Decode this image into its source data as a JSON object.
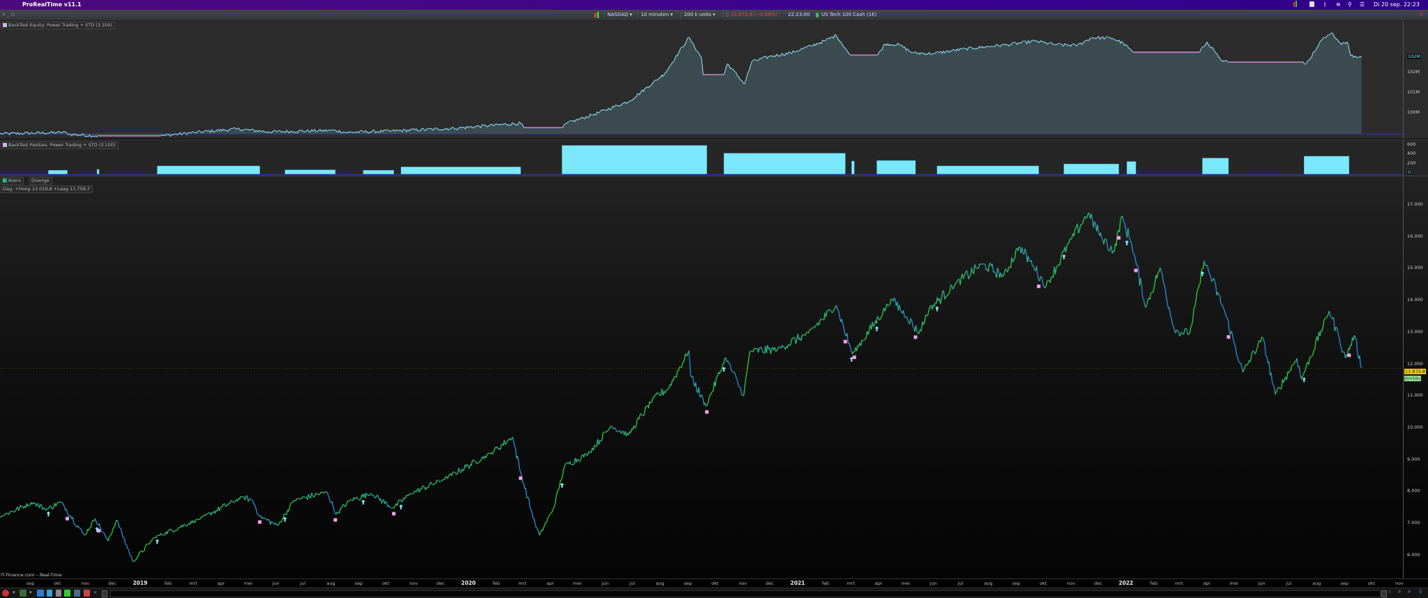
{
  "menubar": {
    "app_title": "ProRealTime v11.1",
    "datetime": "Di 20 sep. 22:23"
  },
  "toolbar": {
    "window_controls": "X _ ⊡",
    "market": "NASDAQ ▾",
    "interval": "10 minuten ▾",
    "units": "200 k units ▾",
    "last_price": "11.873,8 (−0,88%)",
    "time": "22:23:00",
    "instrument": "US Tech 100 Cash (1€)",
    "colors": {
      "down": "#e04848",
      "live_dot": "#33cc33"
    }
  },
  "equity_panel": {
    "title": "BackTest Equity: Power Trading + STD (3.100)",
    "axis_labels": [
      "102M",
      "101M",
      "100M"
    ],
    "current_label": "102M"
  },
  "positions_panel": {
    "title": "BackTest Posities: Power Trading + STD (3.100)",
    "axis_labels": [
      "600",
      "400",
      "200"
    ],
    "current_label": "0"
  },
  "price_panel": {
    "tabs": [
      "Koers",
      "Overige"
    ],
    "day_info": "Dag: +Hoog 12.019,8 +Laag 11.759,7",
    "axis_labels": [
      "17.000",
      "16.000",
      "15.000",
      "14.000",
      "13.000",
      "12.000",
      "11.000",
      "10.000",
      "9.000",
      "8.000",
      "7.000",
      "6.000"
    ],
    "price_tag": "11.873,8",
    "countdown_tag": "6m56s",
    "source": "IT-Finance.com – Real-Time"
  },
  "time_axis": [
    {
      "label": "sep",
      "date": "2018-09-01"
    },
    {
      "label": "okt",
      "date": "2018-10-01"
    },
    {
      "label": "nov",
      "date": "2018-11-01"
    },
    {
      "label": "dec",
      "date": "2018-12-01"
    },
    {
      "label": "2019",
      "date": "2019-01-01",
      "year": true
    },
    {
      "label": "feb",
      "date": "2019-02-01"
    },
    {
      "label": "mrt",
      "date": "2019-03-01"
    },
    {
      "label": "apr",
      "date": "2019-04-01"
    },
    {
      "label": "mei",
      "date": "2019-05-01"
    },
    {
      "label": "jun",
      "date": "2019-06-01"
    },
    {
      "label": "jul",
      "date": "2019-07-01"
    },
    {
      "label": "aug",
      "date": "2019-08-01"
    },
    {
      "label": "sep",
      "date": "2019-09-01"
    },
    {
      "label": "okt",
      "date": "2019-10-01"
    },
    {
      "label": "nov",
      "date": "2019-11-01"
    },
    {
      "label": "dec",
      "date": "2019-12-01"
    },
    {
      "label": "2020",
      "date": "2020-01-01",
      "year": true
    },
    {
      "label": "feb",
      "date": "2020-02-01"
    },
    {
      "label": "mrt",
      "date": "2020-03-01"
    },
    {
      "label": "apr",
      "date": "2020-04-01"
    },
    {
      "label": "mei",
      "date": "2020-05-01"
    },
    {
      "label": "jun",
      "date": "2020-06-01"
    },
    {
      "label": "jul",
      "date": "2020-07-01"
    },
    {
      "label": "aug",
      "date": "2020-08-01"
    },
    {
      "label": "sep",
      "date": "2020-09-01"
    },
    {
      "label": "okt",
      "date": "2020-10-01"
    },
    {
      "label": "nov",
      "date": "2020-11-01"
    },
    {
      "label": "dec",
      "date": "2020-12-01"
    },
    {
      "label": "2021",
      "date": "2021-01-01",
      "year": true
    },
    {
      "label": "feb",
      "date": "2021-02-01"
    },
    {
      "label": "mrt",
      "date": "2021-03-01"
    },
    {
      "label": "apr",
      "date": "2021-04-01"
    },
    {
      "label": "mei",
      "date": "2021-05-01"
    },
    {
      "label": "jun",
      "date": "2021-06-01"
    },
    {
      "label": "jul",
      "date": "2021-07-01"
    },
    {
      "label": "aug",
      "date": "2021-08-01"
    },
    {
      "label": "sep",
      "date": "2021-09-01"
    },
    {
      "label": "okt",
      "date": "2021-10-01"
    },
    {
      "label": "nov",
      "date": "2021-11-01"
    },
    {
      "label": "dec",
      "date": "2021-12-01"
    },
    {
      "label": "2022",
      "date": "2022-01-01",
      "year": true
    },
    {
      "label": "feb",
      "date": "2022-02-01"
    },
    {
      "label": "mrt",
      "date": "2022-03-01"
    },
    {
      "label": "apr",
      "date": "2022-04-01"
    },
    {
      "label": "mei",
      "date": "2022-05-01"
    },
    {
      "label": "jun",
      "date": "2022-06-01"
    },
    {
      "label": "jul",
      "date": "2022-07-01"
    },
    {
      "label": "aug",
      "date": "2022-08-01"
    },
    {
      "label": "sep",
      "date": "2022-09-01"
    },
    {
      "label": "okt",
      "date": "2022-10-01"
    },
    {
      "label": "nov",
      "date": "2022-11-01"
    }
  ],
  "chart_data": [
    {
      "type": "area",
      "title": "BackTest Equity: Power Trading + STD (3.100)",
      "unit": "M",
      "colors": {
        "line": "#8ad8f2",
        "flat": "#e08ad8",
        "fill": "#3b4b50"
      },
      "points": [
        [
          "2018-07-29",
          98.93
        ],
        [
          "2018-10-11",
          99.0
        ],
        [
          "2018-10-14",
          98.9
        ],
        [
          "2018-11-15",
          98.83
        ],
        [
          "2019-01-24",
          98.83
        ],
        [
          "2019-03-03",
          99.0
        ],
        [
          "2019-04-19",
          99.17
        ],
        [
          "2019-05-24",
          99.03
        ],
        [
          "2019-08-06",
          99.1
        ],
        [
          "2019-08-18",
          99.0
        ],
        [
          "2019-10-07",
          99.07
        ],
        [
          "2019-12-16",
          99.2
        ],
        [
          "2020-01-24",
          99.34
        ],
        [
          "2020-02-28",
          99.45
        ],
        [
          "2020-03-03",
          99.24
        ],
        [
          "2020-04-15",
          99.24
        ],
        [
          "2020-04-19",
          99.45
        ],
        [
          "2020-05-20",
          99.9
        ],
        [
          "2020-06-28",
          100.55
        ],
        [
          "2020-08-06",
          101.9
        ],
        [
          "2020-09-02",
          103.7
        ],
        [
          "2020-09-16",
          102.7
        ],
        [
          "2020-09-18",
          101.86
        ],
        [
          "2020-10-11",
          101.86
        ],
        [
          "2020-10-15",
          102.4
        ],
        [
          "2020-11-03",
          101.4
        ],
        [
          "2020-11-11",
          102.5
        ],
        [
          "2020-12-01",
          102.76
        ],
        [
          "2020-12-24",
          102.93
        ],
        [
          "2021-01-16",
          103.28
        ],
        [
          "2021-02-01",
          103.55
        ],
        [
          "2021-02-13",
          103.8
        ],
        [
          "2021-02-24",
          103.1
        ],
        [
          "2021-02-28",
          102.83
        ],
        [
          "2021-03-31",
          102.83
        ],
        [
          "2021-04-08",
          103.38
        ],
        [
          "2021-04-24",
          103.34
        ],
        [
          "2021-05-09",
          102.93
        ],
        [
          "2021-06-01",
          102.9
        ],
        [
          "2021-07-07",
          103.14
        ],
        [
          "2021-08-22",
          103.34
        ],
        [
          "2021-09-22",
          103.52
        ],
        [
          "2021-10-16",
          103.34
        ],
        [
          "2021-11-08",
          103.31
        ],
        [
          "2021-11-24",
          103.69
        ],
        [
          "2021-12-17",
          103.66
        ],
        [
          "2021-12-29",
          103.41
        ],
        [
          "2022-01-09",
          102.97
        ],
        [
          "2022-03-24",
          102.97
        ],
        [
          "2022-04-01",
          103.48
        ],
        [
          "2022-04-09",
          103.07
        ],
        [
          "2022-04-17",
          102.55
        ],
        [
          "2022-04-24",
          102.48
        ],
        [
          "2022-07-17",
          102.48
        ],
        [
          "2022-07-20",
          102.38
        ],
        [
          "2022-07-31",
          103.07
        ],
        [
          "2022-08-07",
          103.59
        ],
        [
          "2022-08-19",
          103.9
        ],
        [
          "2022-08-27",
          103.41
        ],
        [
          "2022-09-04",
          103.48
        ],
        [
          "2022-09-08",
          102.79
        ],
        [
          "2022-09-20",
          102.72
        ]
      ]
    },
    {
      "type": "bar",
      "title": "BackTest Posities: Power Trading + STD (3.100)",
      "ylim": [
        0,
        600
      ],
      "color": "#7ae8ff",
      "positions": [
        {
          "start": "2018-09-21",
          "end": "2018-10-12",
          "size": 80
        },
        {
          "start": "2018-11-14",
          "end": "2018-11-16",
          "size": 100
        },
        {
          "start": "2019-01-20",
          "end": "2019-05-14",
          "size": 170
        },
        {
          "start": "2019-06-11",
          "end": "2019-08-06",
          "size": 90
        },
        {
          "start": "2019-09-06",
          "end": "2019-10-10",
          "size": 80
        },
        {
          "start": "2019-10-18",
          "end": "2020-02-28",
          "size": 150
        },
        {
          "start": "2020-04-14",
          "end": "2020-09-22",
          "size": 590
        },
        {
          "start": "2020-10-11",
          "end": "2021-02-23",
          "size": 430
        },
        {
          "start": "2021-03-02",
          "end": "2021-03-05",
          "size": 270
        },
        {
          "start": "2021-03-30",
          "end": "2021-05-12",
          "size": 280
        },
        {
          "start": "2021-06-05",
          "end": "2021-09-26",
          "size": 170
        },
        {
          "start": "2021-10-24",
          "end": "2021-12-24",
          "size": 210
        },
        {
          "start": "2022-01-02",
          "end": "2022-01-12",
          "size": 260
        },
        {
          "start": "2022-03-27",
          "end": "2022-04-25",
          "size": 330
        },
        {
          "start": "2022-07-18",
          "end": "2022-09-06",
          "size": 370
        }
      ]
    },
    {
      "type": "line",
      "title": "Koers",
      "ylim": [
        6000,
        17000
      ],
      "colors": {
        "up": "#2fd02f",
        "down": "#2a8fe0",
        "buy_marker": "#8ff0ff",
        "sell_marker": "#f5a0f0"
      },
      "points": [
        [
          "2018-07-29",
          7219
        ],
        [
          "2018-09-04",
          7656
        ],
        [
          "2018-09-19",
          7438
        ],
        [
          "2018-10-05",
          7678
        ],
        [
          "2018-10-31",
          6628
        ],
        [
          "2018-11-12",
          7153
        ],
        [
          "2018-11-26",
          6453
        ],
        [
          "2018-12-06",
          7109
        ],
        [
          "2018-12-24",
          5797
        ],
        [
          "2019-01-17",
          6562
        ],
        [
          "2019-03-09",
          7153
        ],
        [
          "2019-04-25",
          7832
        ],
        [
          "2019-05-06",
          7722
        ],
        [
          "2019-05-14",
          7219
        ],
        [
          "2019-06-03",
          6934
        ],
        [
          "2019-06-21",
          7722
        ],
        [
          "2019-07-28",
          7985
        ],
        [
          "2019-08-07",
          7285
        ],
        [
          "2019-08-22",
          7722
        ],
        [
          "2019-09-15",
          7941
        ],
        [
          "2019-10-09",
          7481
        ],
        [
          "2019-10-29",
          7941
        ],
        [
          "2019-12-04",
          8379
        ],
        [
          "2020-01-25",
          9188
        ],
        [
          "2020-02-19",
          9713
        ],
        [
          "2020-02-28",
          8597
        ],
        [
          "2020-03-15",
          7000
        ],
        [
          "2020-03-20",
          6628
        ],
        [
          "2020-04-05",
          7503
        ],
        [
          "2020-04-17",
          8816
        ],
        [
          "2020-05-13",
          9188
        ],
        [
          "2020-06-08",
          10063
        ],
        [
          "2020-06-27",
          9779
        ],
        [
          "2020-07-25",
          10940
        ],
        [
          "2020-08-10",
          11223
        ],
        [
          "2020-09-02",
          12427
        ],
        [
          "2020-09-04",
          11661
        ],
        [
          "2020-09-21",
          10676
        ],
        [
          "2020-10-13",
          12208
        ],
        [
          "2020-11-02",
          11004
        ],
        [
          "2020-11-09",
          12405
        ],
        [
          "2020-12-10",
          12470
        ],
        [
          "2021-01-13",
          12974
        ],
        [
          "2021-02-13",
          13849
        ],
        [
          "2021-03-03",
          12317
        ],
        [
          "2021-04-16",
          14046
        ],
        [
          "2021-05-02",
          13499
        ],
        [
          "2021-05-16",
          12974
        ],
        [
          "2021-05-27",
          13718
        ],
        [
          "2021-06-25",
          14505
        ],
        [
          "2021-07-25",
          15140
        ],
        [
          "2021-08-18",
          14768
        ],
        [
          "2021-09-04",
          15687
        ],
        [
          "2021-09-20",
          15096
        ],
        [
          "2021-10-04",
          14440
        ],
        [
          "2021-11-02",
          15972
        ],
        [
          "2021-11-20",
          16737
        ],
        [
          "2021-12-05",
          15972
        ],
        [
          "2021-12-19",
          15534
        ],
        [
          "2021-12-27",
          16628
        ],
        [
          "2022-01-07",
          15818
        ],
        [
          "2022-01-23",
          13783
        ],
        [
          "2022-02-08",
          15031
        ],
        [
          "2022-02-24",
          13061
        ],
        [
          "2022-03-13",
          12974
        ],
        [
          "2022-03-29",
          15250
        ],
        [
          "2022-04-20",
          13718
        ],
        [
          "2022-05-11",
          11748
        ],
        [
          "2022-06-02",
          12842
        ],
        [
          "2022-06-16",
          11048
        ],
        [
          "2022-07-10",
          12186
        ],
        [
          "2022-07-15",
          11530
        ],
        [
          "2022-08-15",
          13674
        ],
        [
          "2022-08-26",
          12842
        ],
        [
          "2022-09-02",
          12186
        ],
        [
          "2022-09-12",
          12908
        ],
        [
          "2022-09-20",
          11873.8
        ]
      ]
    }
  ]
}
